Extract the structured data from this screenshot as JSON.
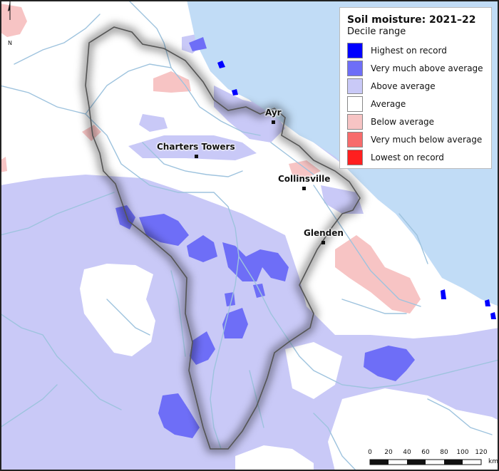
{
  "legend": {
    "title": "Soil moisture: 2021–22",
    "subtitle": "Decile range",
    "items": [
      {
        "label": "Highest on record",
        "color": "#0000ff"
      },
      {
        "label": "Very much above average",
        "color": "#6e6ef7"
      },
      {
        "label": "Above average",
        "color": "#c9c9f7"
      },
      {
        "label": "Average",
        "color": "#ffffff"
      },
      {
        "label": "Below average",
        "color": "#f7c4c4"
      },
      {
        "label": "Very much below average",
        "color": "#f76b6b"
      },
      {
        "label": "Lowest on record",
        "color": "#ff1f1f"
      }
    ]
  },
  "towns": {
    "ayr": "Ayr",
    "charters_towers": "Charters Towers",
    "collinsville": "Collinsville",
    "glenden": "Glenden"
  },
  "north_arrow": {
    "label": "N"
  },
  "scale_bar": {
    "ticks": [
      "0",
      "20",
      "40",
      "60",
      "80",
      "100",
      "120"
    ],
    "unit": "km"
  },
  "colors": {
    "sea": "#c1dcf6",
    "river": "#9ec3de",
    "basin_outline": "#555555"
  }
}
